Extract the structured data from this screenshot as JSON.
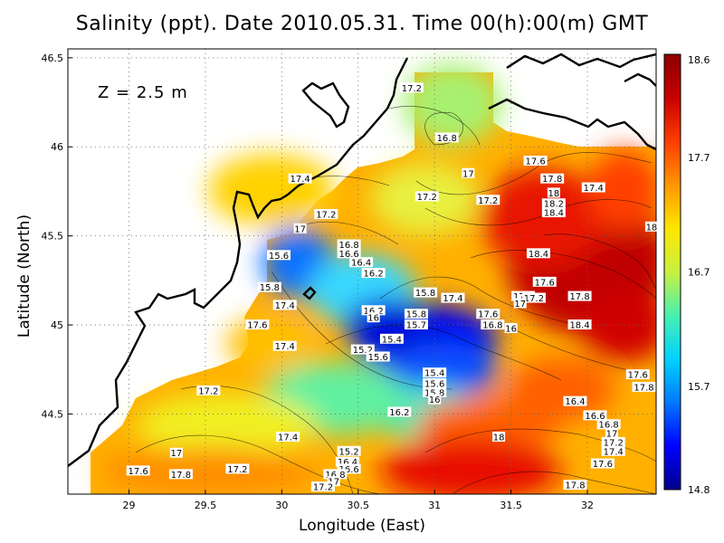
{
  "title": "Salinity (ppt). Date 2010.05.31. Time 00(h):00(m) GMT",
  "annotation": "Z  =  2.5  m",
  "xlabel": "Longitude (East)",
  "ylabel": "Latitude (North)",
  "colorbar": {
    "labels": [
      "18.6",
      "17.7",
      "16.7",
      "15.7",
      "14.8"
    ],
    "range": [
      14.8,
      18.6
    ],
    "colors": [
      "#00008b",
      "#0000ff",
      "#0078ff",
      "#00d2ff",
      "#48f0b0",
      "#c8f040",
      "#ffe600",
      "#ff9600",
      "#ff3c00",
      "#c80000",
      "#8b0000"
    ]
  },
  "chart_data": {
    "type": "heatmap",
    "variable": "Salinity (ppt)",
    "depth": "Z = 2.5 m",
    "x_ticks": [
      "29",
      "29.5",
      "30",
      "30.5",
      "31",
      "31.5",
      "32"
    ],
    "y_ticks": [
      "44.5",
      "45",
      "45.5",
      "46",
      "46.5"
    ],
    "xlim": [
      28.6,
      32.45
    ],
    "ylim": [
      44.05,
      46.55
    ],
    "grid": true,
    "contour_labels": [
      {
        "lon": 30.85,
        "lat": 46.33,
        "value": "17.2"
      },
      {
        "lon": 31.08,
        "lat": 46.05,
        "value": "16.8"
      },
      {
        "lon": 31.22,
        "lat": 45.85,
        "value": "17"
      },
      {
        "lon": 31.35,
        "lat": 45.7,
        "value": "17.2"
      },
      {
        "lon": 31.66,
        "lat": 45.92,
        "value": "17.6"
      },
      {
        "lon": 31.77,
        "lat": 45.82,
        "value": "17.8"
      },
      {
        "lon": 31.78,
        "lat": 45.74,
        "value": "18"
      },
      {
        "lon": 31.78,
        "lat": 45.68,
        "value": "18.2"
      },
      {
        "lon": 31.78,
        "lat": 45.63,
        "value": "18.4"
      },
      {
        "lon": 32.04,
        "lat": 45.77,
        "value": "17.4"
      },
      {
        "lon": 32.42,
        "lat": 45.55,
        "value": "18"
      },
      {
        "lon": 30.12,
        "lat": 45.82,
        "value": "17.4"
      },
      {
        "lon": 30.95,
        "lat": 45.72,
        "value": "17.2"
      },
      {
        "lon": 30.29,
        "lat": 45.62,
        "value": "17.2"
      },
      {
        "lon": 30.12,
        "lat": 45.54,
        "value": "17"
      },
      {
        "lon": 30.44,
        "lat": 45.45,
        "value": "16.8"
      },
      {
        "lon": 30.44,
        "lat": 45.4,
        "value": "16.6"
      },
      {
        "lon": 30.52,
        "lat": 45.35,
        "value": "16.4"
      },
      {
        "lon": 30.6,
        "lat": 45.29,
        "value": "16.2"
      },
      {
        "lon": 29.98,
        "lat": 45.39,
        "value": "15.6"
      },
      {
        "lon": 31.68,
        "lat": 45.4,
        "value": "18.4"
      },
      {
        "lon": 31.72,
        "lat": 45.24,
        "value": "17.6"
      },
      {
        "lon": 31.58,
        "lat": 45.16,
        "value": "17.4"
      },
      {
        "lon": 31.65,
        "lat": 45.15,
        "value": "17.2"
      },
      {
        "lon": 31.56,
        "lat": 45.12,
        "value": "17"
      },
      {
        "lon": 31.95,
        "lat": 45.16,
        "value": "17.8"
      },
      {
        "lon": 30.94,
        "lat": 45.18,
        "value": "15.8"
      },
      {
        "lon": 31.12,
        "lat": 45.15,
        "value": "17.4"
      },
      {
        "lon": 31.35,
        "lat": 45.06,
        "value": "17.6"
      },
      {
        "lon": 31.38,
        "lat": 45.0,
        "value": "16.8"
      },
      {
        "lon": 31.5,
        "lat": 44.98,
        "value": "16"
      },
      {
        "lon": 30.6,
        "lat": 45.08,
        "value": "16.2"
      },
      {
        "lon": 30.6,
        "lat": 45.04,
        "value": "16"
      },
      {
        "lon": 30.88,
        "lat": 45.06,
        "value": "15.8"
      },
      {
        "lon": 30.88,
        "lat": 45.0,
        "value": "15.7"
      },
      {
        "lon": 29.92,
        "lat": 45.21,
        "value": "15.8"
      },
      {
        "lon": 30.02,
        "lat": 45.11,
        "value": "17.4"
      },
      {
        "lon": 29.84,
        "lat": 45.0,
        "value": "17.6"
      },
      {
        "lon": 30.72,
        "lat": 44.92,
        "value": "15.4"
      },
      {
        "lon": 30.53,
        "lat": 44.86,
        "value": "15.2"
      },
      {
        "lon": 30.63,
        "lat": 44.82,
        "value": "15.6"
      },
      {
        "lon": 30.02,
        "lat": 44.88,
        "value": "17.4"
      },
      {
        "lon": 31.95,
        "lat": 45.0,
        "value": "18.4"
      },
      {
        "lon": 31.0,
        "lat": 44.73,
        "value": "15.4"
      },
      {
        "lon": 31.0,
        "lat": 44.67,
        "value": "15.6"
      },
      {
        "lon": 31.0,
        "lat": 44.62,
        "value": "15.8"
      },
      {
        "lon": 31.0,
        "lat": 44.58,
        "value": "16"
      },
      {
        "lon": 30.77,
        "lat": 44.51,
        "value": "16.2"
      },
      {
        "lon": 31.92,
        "lat": 44.57,
        "value": "16.4"
      },
      {
        "lon": 32.05,
        "lat": 44.49,
        "value": "16.6"
      },
      {
        "lon": 32.14,
        "lat": 44.44,
        "value": "16.8"
      },
      {
        "lon": 32.16,
        "lat": 44.39,
        "value": "17"
      },
      {
        "lon": 32.17,
        "lat": 44.34,
        "value": "17.2"
      },
      {
        "lon": 32.17,
        "lat": 44.29,
        "value": "17.4"
      },
      {
        "lon": 32.1,
        "lat": 44.22,
        "value": "17.6"
      },
      {
        "lon": 32.33,
        "lat": 44.72,
        "value": "17.6"
      },
      {
        "lon": 32.37,
        "lat": 44.65,
        "value": "17.8"
      },
      {
        "lon": 29.52,
        "lat": 44.63,
        "value": "17.2"
      },
      {
        "lon": 30.04,
        "lat": 44.37,
        "value": "17.4"
      },
      {
        "lon": 29.31,
        "lat": 44.28,
        "value": "17"
      },
      {
        "lon": 31.42,
        "lat": 44.37,
        "value": "18"
      },
      {
        "lon": 29.06,
        "lat": 44.18,
        "value": "17.6"
      },
      {
        "lon": 29.34,
        "lat": 44.16,
        "value": "17.8"
      },
      {
        "lon": 29.71,
        "lat": 44.19,
        "value": "17.2"
      },
      {
        "lon": 30.44,
        "lat": 44.29,
        "value": "15.2"
      },
      {
        "lon": 30.43,
        "lat": 44.23,
        "value": "16.4"
      },
      {
        "lon": 30.44,
        "lat": 44.19,
        "value": "16.6"
      },
      {
        "lon": 30.35,
        "lat": 44.16,
        "value": "16.8"
      },
      {
        "lon": 30.34,
        "lat": 44.12,
        "value": "17"
      },
      {
        "lon": 30.27,
        "lat": 44.09,
        "value": "17.2"
      },
      {
        "lon": 31.92,
        "lat": 44.1,
        "value": "17.8"
      }
    ]
  }
}
